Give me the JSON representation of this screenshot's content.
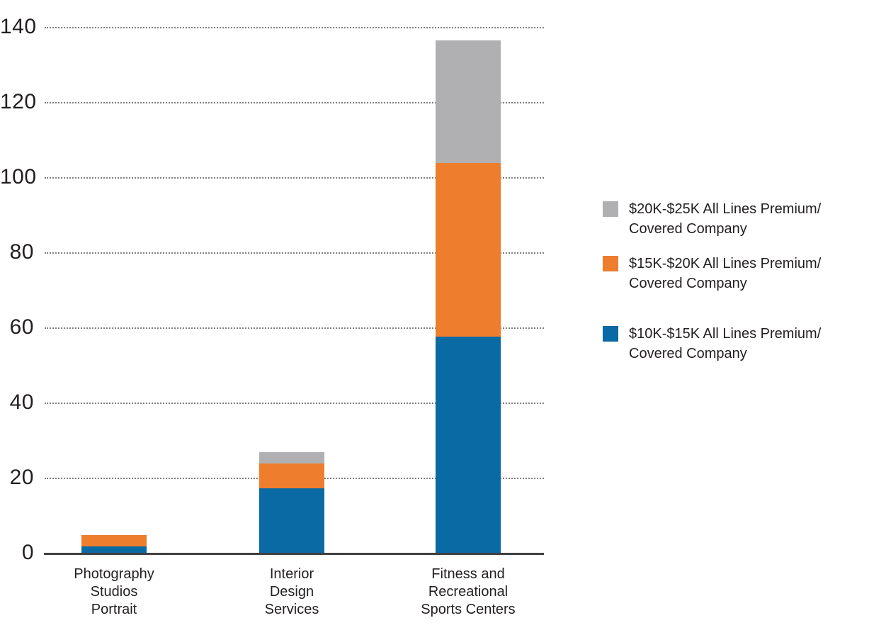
{
  "chart_data": {
    "type": "bar",
    "stacked": true,
    "title": "",
    "xlabel": "",
    "ylabel": "",
    "categories": [
      "Photography\nStudios\nPortrait",
      "Interior\nDesign\nServices",
      "Fitness and\nRecreational\nSports Centers"
    ],
    "series": [
      {
        "name": "$10K-$15K All Lines Premium/\nCovered Company",
        "color": "#0a6aa3",
        "values": [
          1.9,
          17.4,
          57.7
        ]
      },
      {
        "name": "$15K-$20K All Lines Premium/\nCovered Company",
        "color": "#ee7d2e",
        "values": [
          3.0,
          6.5,
          46.3
        ]
      },
      {
        "name": "$20K-$25K All Lines Premium/\nCovered Company",
        "color": "#b0b0b2",
        "values": [
          0,
          3.0,
          32.7
        ]
      }
    ],
    "stack_totals": [
      4.9,
      26.9,
      136.7
    ],
    "ylim": [
      0,
      140
    ],
    "yticks": [
      0,
      20,
      40,
      60,
      80,
      100,
      120,
      140
    ],
    "grid": "horizontal-dotted",
    "legend_position": "right",
    "legend_display_order": "top-to-bottom: $20K-$25K, $15K-$20K, $10K-$15K",
    "colors": {
      "axis": "#414042",
      "gridline": "#7f7f7f",
      "text": "#231f20",
      "background": "#ffffff"
    }
  }
}
